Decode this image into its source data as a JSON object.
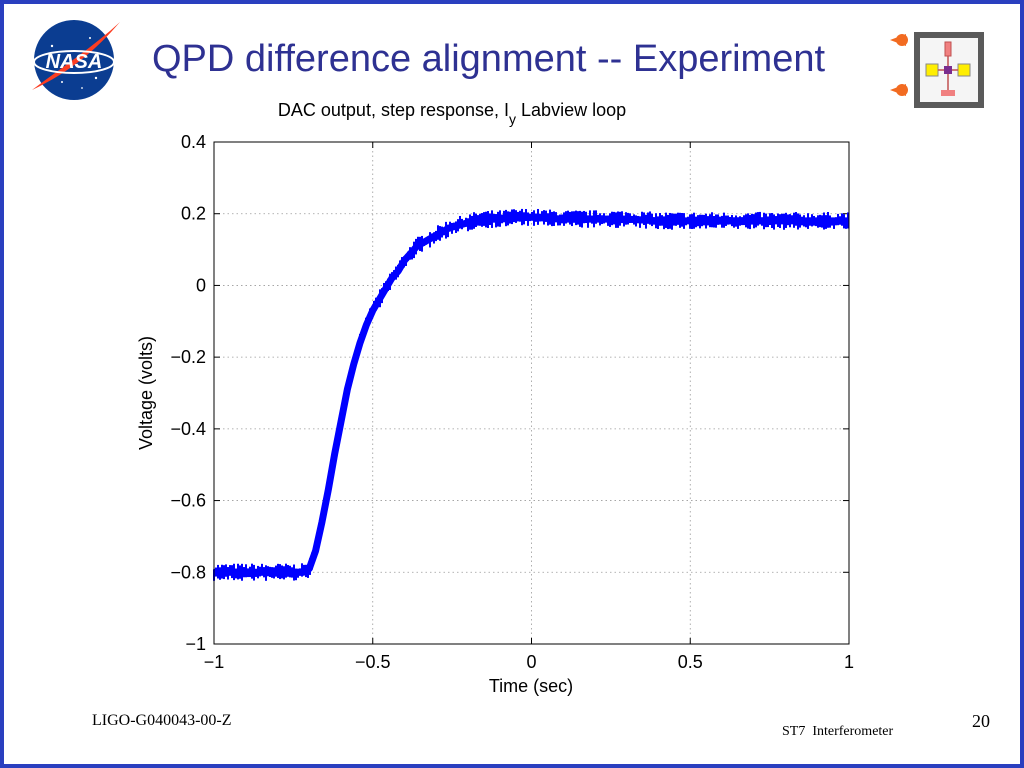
{
  "slide": {
    "title": "QPD difference alignment -- Experiment",
    "footer_left": "LIGO-G040043-00-Z",
    "footer_center": "ST7  Interferometer",
    "page_number": "20"
  },
  "logos": {
    "nasa": {
      "icon": "nasa-meatball-icon",
      "text": "NASA"
    },
    "mission": {
      "icon": "st7-spacecraft-icon"
    }
  },
  "colors": {
    "title": "#2e3192",
    "border": "#2a3fbf",
    "series": "#0000ff"
  },
  "chart_data": {
    "type": "line",
    "title_main": "DAC output, step response, I",
    "title_sub": "y",
    "title_tail": " Labview loop",
    "xlabel": "Time (sec)",
    "ylabel": "Voltage (volts)",
    "xlim": [
      -1,
      1
    ],
    "ylim": [
      -1,
      0.4
    ],
    "grid": true,
    "xticks": [
      -1,
      -0.5,
      0,
      0.5,
      1
    ],
    "xtick_labels": [
      "−1",
      "−0.5",
      "0",
      "0.5",
      "1"
    ],
    "yticks": [
      0.4,
      0.2,
      0,
      -0.2,
      -0.4,
      -0.6,
      -0.8,
      -1
    ],
    "ytick_labels": [
      "0.4",
      "0.2",
      "0",
      "−0.2",
      "−0.4",
      "−0.6",
      "−0.8",
      "−1"
    ],
    "series": [
      {
        "x": [
          -1.0,
          -0.9,
          -0.8,
          -0.75,
          -0.72,
          -0.7,
          -0.68,
          -0.66,
          -0.64,
          -0.62,
          -0.6,
          -0.58,
          -0.56,
          -0.54,
          -0.52,
          -0.5,
          -0.48,
          -0.46,
          -0.44,
          -0.42,
          -0.4,
          -0.38,
          -0.36,
          -0.34,
          -0.32,
          -0.3,
          -0.28,
          -0.26,
          -0.24,
          -0.22,
          -0.2,
          -0.18,
          -0.15,
          -0.1,
          -0.05,
          0.0,
          0.1,
          0.2,
          0.3,
          0.4,
          0.5,
          0.6,
          0.7,
          0.8,
          0.9,
          1.0
        ],
        "y": [
          -0.8,
          -0.8,
          -0.8,
          -0.8,
          -0.8,
          -0.79,
          -0.74,
          -0.66,
          -0.57,
          -0.47,
          -0.38,
          -0.29,
          -0.22,
          -0.16,
          -0.11,
          -0.07,
          -0.04,
          -0.01,
          0.02,
          0.04,
          0.07,
          0.09,
          0.11,
          0.12,
          0.13,
          0.14,
          0.15,
          0.16,
          0.165,
          0.17,
          0.175,
          0.18,
          0.185,
          0.185,
          0.19,
          0.19,
          0.185,
          0.185,
          0.185,
          0.18,
          0.18,
          0.18,
          0.18,
          0.18,
          0.18,
          0.18
        ]
      }
    ]
  }
}
